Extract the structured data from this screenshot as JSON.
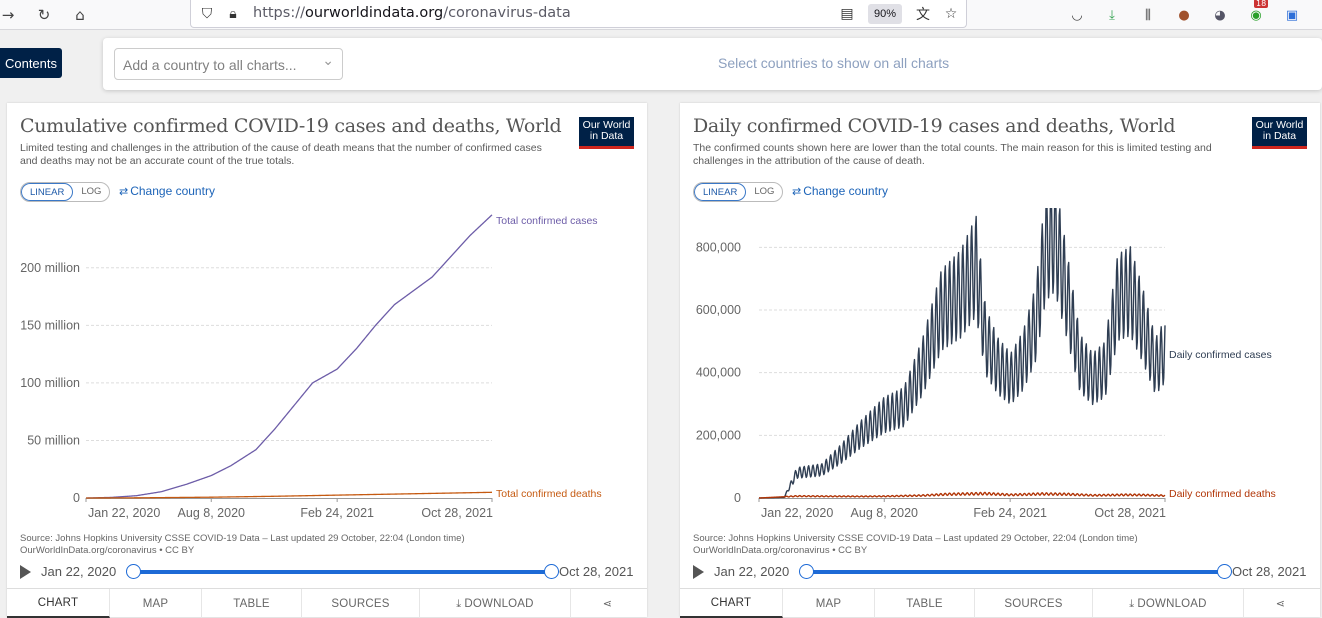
{
  "browser": {
    "url_prefix": "https://",
    "url_host": "ourworldindata.org",
    "url_path": "/coronavirus-data",
    "zoom": "90%",
    "ext_badge": "18"
  },
  "page": {
    "contents_label": "Contents",
    "country_placeholder": "Add a country to all charts...",
    "country_hint": "Select countries to show on all charts"
  },
  "panels": [
    {
      "title": "Cumulative confirmed COVID-19 cases and deaths, World",
      "subtitle": "Limited testing and challenges in the attribution of the cause of death means that the number of confirmed cases and deaths may not be an accurate count of the true totals.",
      "logo_line1": "Our World",
      "logo_line2": "in Data",
      "linear_label": "LINEAR",
      "log_label": "LOG",
      "change_country": "Change country",
      "source_line1": "Source: Johns Hopkins University CSSE COVID-19 Data – Last updated 29 October, 22:04 (London time)",
      "source_line2": "OurWorldInData.org/coronavirus • CC BY",
      "timeline_start": "Jan 22, 2020",
      "timeline_end": "Oct 28, 2021",
      "tabs": [
        "CHART",
        "MAP",
        "TABLE",
        "SOURCES",
        "DOWNLOAD",
        ""
      ]
    },
    {
      "title": "Daily confirmed COVID-19 cases and deaths, World",
      "subtitle": "The confirmed counts shown here are lower than the total counts. The main reason for this is limited testing and challenges in the attribution of the cause of death.",
      "logo_line1": "Our World",
      "logo_line2": "in Data",
      "linear_label": "LINEAR",
      "log_label": "LOG",
      "change_country": "Change country",
      "source_line1": "Source: Johns Hopkins University CSSE COVID-19 Data – Last updated 29 October, 22:04 (London time)",
      "source_line2": "OurWorldInData.org/coronavirus • CC BY",
      "timeline_start": "Jan 22, 2020",
      "timeline_end": "Oct 28, 2021",
      "tabs": [
        "CHART",
        "MAP",
        "TABLE",
        "SOURCES",
        "DOWNLOAD",
        ""
      ]
    }
  ],
  "chart_data": [
    {
      "type": "line",
      "title": "Cumulative confirmed COVID-19 cases and deaths, World",
      "y_ticks": [
        0,
        50000000,
        100000000,
        150000000,
        200000000
      ],
      "y_tick_labels": [
        "0",
        "50 million",
        "100 million",
        "150 million",
        "200 million"
      ],
      "x_tick_labels": [
        "Jan 22, 2020",
        "Aug 8, 2020",
        "Feb 24, 2021",
        "Oct 28, 2021"
      ],
      "x_tick_days": [
        0,
        199,
        399,
        645
      ],
      "ylim": [
        0,
        245000000
      ],
      "grid": "horizontal-dashed",
      "series": [
        {
          "name": "Total confirmed cases",
          "color": "#6d5da8",
          "points": [
            [
              0,
              0
            ],
            [
              40,
              500000
            ],
            [
              80,
              2000000
            ],
            [
              120,
              5500000
            ],
            [
              160,
              12000000
            ],
            [
              199,
              19500000
            ],
            [
              230,
              28000000
            ],
            [
              270,
              42000000
            ],
            [
              300,
              60000000
            ],
            [
              330,
              80000000
            ],
            [
              360,
              100000000
            ],
            [
              399,
              112000000
            ],
            [
              430,
              130000000
            ],
            [
              460,
              150000000
            ],
            [
              490,
              168000000
            ],
            [
              520,
              180000000
            ],
            [
              550,
              192000000
            ],
            [
              580,
              210000000
            ],
            [
              610,
              228000000
            ],
            [
              645,
              246000000
            ]
          ]
        },
        {
          "name": "Total confirmed deaths",
          "color": "#c55a11",
          "points": [
            [
              0,
              0
            ],
            [
              80,
              150000
            ],
            [
              199,
              700000
            ],
            [
              300,
              1500000
            ],
            [
              399,
              2500000
            ],
            [
              500,
              3500000
            ],
            [
              645,
              4950000
            ]
          ]
        }
      ]
    },
    {
      "type": "line",
      "title": "Daily confirmed COVID-19 cases and deaths, World",
      "y_ticks": [
        0,
        200000,
        400000,
        600000,
        800000
      ],
      "y_tick_labels": [
        "0",
        "200,000",
        "400,000",
        "600,000",
        "800,000"
      ],
      "x_tick_labels": [
        "Jan 22, 2020",
        "Aug 8, 2020",
        "Feb 24, 2021",
        "Oct 28, 2021"
      ],
      "x_tick_days": [
        0,
        199,
        399,
        645
      ],
      "ylim": [
        0,
        900000
      ],
      "grid": "horizontal-dashed",
      "series": [
        {
          "name": "Daily confirmed cases",
          "color": "#2f3e53",
          "weekly_amplitude": 0.22,
          "points": [
            [
              0,
              0
            ],
            [
              40,
              2000
            ],
            [
              60,
              80000
            ],
            [
              80,
              85000
            ],
            [
              100,
              90000
            ],
            [
              130,
              140000
            ],
            [
              160,
              200000
            ],
            [
              199,
              265000
            ],
            [
              230,
              290000
            ],
            [
              260,
              420000
            ],
            [
              290,
              600000
            ],
            [
              320,
              650000
            ],
            [
              345,
              740000
            ],
            [
              360,
              500000
            ],
            [
              380,
              420000
            ],
            [
              400,
              380000
            ],
            [
              420,
              440000
            ],
            [
              440,
              560000
            ],
            [
              455,
              800000
            ],
            [
              470,
              840000
            ],
            [
              490,
              640000
            ],
            [
              510,
              430000
            ],
            [
              530,
              380000
            ],
            [
              550,
              410000
            ],
            [
              570,
              640000
            ],
            [
              590,
              660000
            ],
            [
              610,
              550000
            ],
            [
              630,
              420000
            ],
            [
              645,
              470000
            ]
          ]
        },
        {
          "name": "Daily confirmed deaths",
          "color": "#b13507",
          "weekly_amplitude": 0.3,
          "points": [
            [
              0,
              0
            ],
            [
              60,
              6000
            ],
            [
              100,
              5500
            ],
            [
              160,
              5000
            ],
            [
              199,
              5500
            ],
            [
              260,
              8000
            ],
            [
              300,
              12000
            ],
            [
              360,
              14000
            ],
            [
              400,
              10000
            ],
            [
              450,
              13000
            ],
            [
              490,
              12000
            ],
            [
              530,
              8500
            ],
            [
              580,
              10000
            ],
            [
              610,
              9500
            ],
            [
              645,
              7500
            ]
          ]
        }
      ]
    }
  ]
}
